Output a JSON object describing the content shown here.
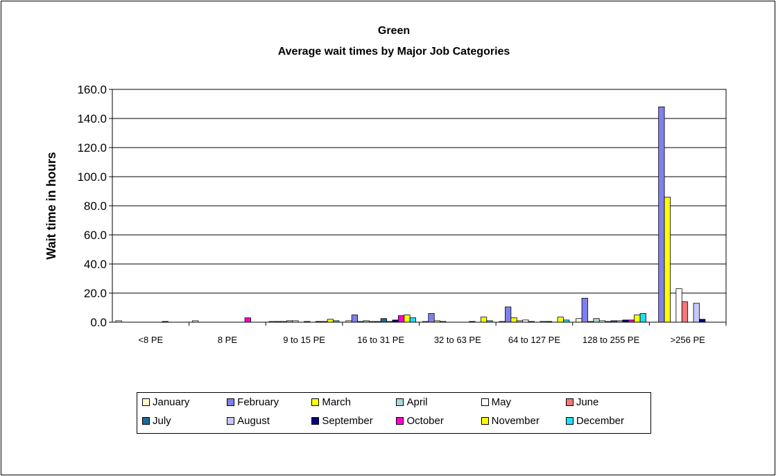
{
  "chart_data": {
    "type": "bar",
    "title": "Green",
    "subtitle": "Average wait times by Major Job Categories",
    "xlabel": "",
    "ylabel": "Wait time in hours",
    "ylim": [
      0,
      160
    ],
    "yticks": [
      "0.0",
      "20.0",
      "40.0",
      "60.0",
      "80.0",
      "100.0",
      "120.0",
      "140.0",
      "160.0"
    ],
    "grid": true,
    "legend_position": "bottom",
    "categories": [
      "<8 PE",
      "8 PE",
      "9 to 15 PE",
      "16 to 31 PE",
      "32 to 63 PE",
      "64 to 127 PE",
      "128 to 255 PE",
      ">256 PE"
    ],
    "series": [
      {
        "name": "January",
        "color": "#FFFFCC",
        "values": [
          1.0,
          1.0,
          0.5,
          1.0,
          0.5,
          0.5,
          2.5,
          0
        ]
      },
      {
        "name": "February",
        "color": "#7F7FEF",
        "values": [
          0,
          0,
          0.5,
          5.0,
          6.0,
          10.5,
          16.5,
          148
        ]
      },
      {
        "name": "March",
        "color": "#FFFF00",
        "values": [
          0,
          0,
          0.5,
          0.5,
          1.0,
          3.0,
          0.5,
          86
        ]
      },
      {
        "name": "April",
        "color": "#A8D8D8",
        "values": [
          0,
          0,
          1.0,
          1.0,
          0.5,
          1.0,
          2.5,
          0
        ]
      },
      {
        "name": "May",
        "color": "#FFFFFF",
        "values": [
          0,
          0,
          1.0,
          0.5,
          0,
          1.5,
          1.0,
          23
        ]
      },
      {
        "name": "June",
        "color": "#F07878",
        "values": [
          0,
          0,
          0,
          0.5,
          0,
          0.5,
          0.5,
          14
        ]
      },
      {
        "name": "July",
        "color": "#1A6A9A",
        "values": [
          0,
          0,
          0.5,
          2.5,
          0,
          0,
          1.0,
          0
        ]
      },
      {
        "name": "August",
        "color": "#C8C8F8",
        "values": [
          0,
          0,
          0,
          0.5,
          0,
          0.5,
          1.0,
          13
        ]
      },
      {
        "name": "September",
        "color": "#000080",
        "values": [
          0.5,
          0,
          0.5,
          1.5,
          0.5,
          0.5,
          1.5,
          2
        ]
      },
      {
        "name": "October",
        "color": "#FF00CC",
        "values": [
          0,
          3.0,
          0.5,
          4.5,
          0,
          0,
          1.5,
          0
        ]
      },
      {
        "name": "November",
        "color": "#FFFF00",
        "values": [
          0,
          0,
          2.0,
          5.0,
          3.5,
          3.5,
          5.0,
          0
        ]
      },
      {
        "name": "December",
        "color": "#22DDEE",
        "values": [
          0,
          0,
          1.0,
          3.0,
          1.0,
          1.5,
          6.0,
          0
        ]
      }
    ]
  }
}
